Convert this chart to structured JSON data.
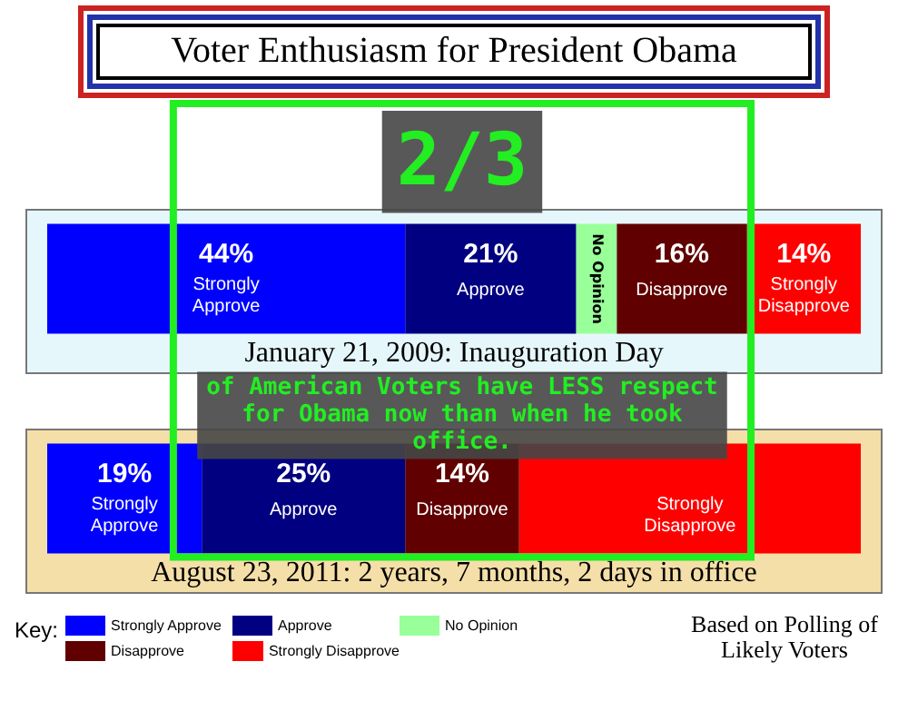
{
  "chart_data": {
    "type": "bar",
    "orientation": "horizontal",
    "stacked": true,
    "title": "Voter Enthusiasm for President Obama",
    "categories": [
      "January 21, 2009: Inauguration Day",
      "August 23, 2011: 2 years, 7 months, 2 days in office"
    ],
    "series": [
      {
        "name": "Strongly Approve",
        "color": "#0000ff",
        "values": [
          44,
          19
        ],
        "value_labels": [
          "44%",
          "19%"
        ]
      },
      {
        "name": "Approve",
        "color": "#000080",
        "values": [
          21,
          25
        ],
        "value_labels": [
          "21%",
          "25%"
        ]
      },
      {
        "name": "No Opinion",
        "color": "#99ff99",
        "values": [
          5,
          null
        ],
        "value_labels": [
          null,
          null
        ]
      },
      {
        "name": "Disapprove",
        "color": "#600000",
        "values": [
          16,
          14
        ],
        "value_labels": [
          "16%",
          "14%"
        ]
      },
      {
        "name": "Strongly Disapprove",
        "color": "#ff0000",
        "values": [
          14,
          42
        ],
        "value_labels": [
          "14%",
          null
        ]
      }
    ],
    "legend": "bottom left",
    "legend_title": "Key:",
    "annotations": [
      "Based on Polling of Likely Voters",
      "2/3",
      "of American Voters have LESS respect for Obama now than when he took office."
    ]
  }
}
